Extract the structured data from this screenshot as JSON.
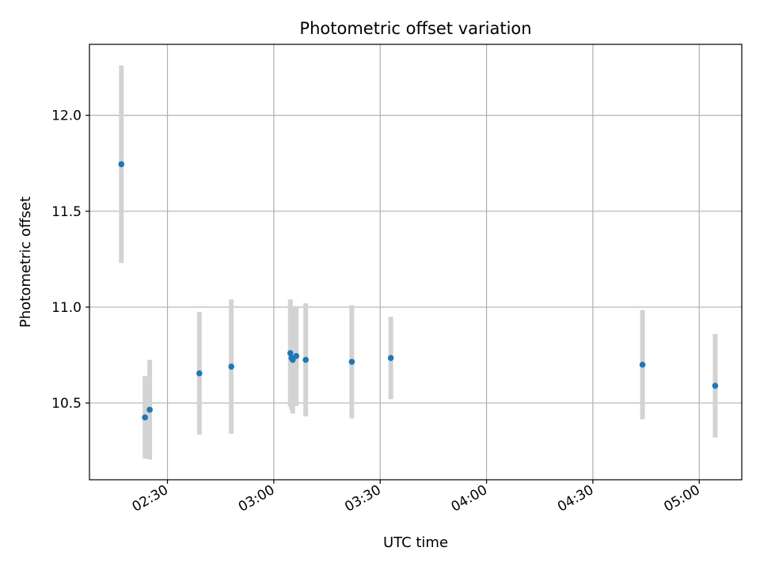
{
  "chart_data": {
    "type": "scatter",
    "title": "Photometric offset variation",
    "xlabel": "UTC time",
    "ylabel": "Photometric offset",
    "x_range": [
      "02:08",
      "05:12"
    ],
    "ylim": [
      10.1,
      12.37
    ],
    "x_ticks": [
      "02:30",
      "03:00",
      "03:30",
      "04:00",
      "04:30",
      "05:00"
    ],
    "y_ticks": [
      10.5,
      11.0,
      11.5,
      12.0
    ],
    "y_tick_labels": [
      "10.5",
      "11.0",
      "11.5",
      "12.0"
    ],
    "grid": true,
    "colors": {
      "point": "#1f77b4",
      "errorbar": "#d3d3d3"
    },
    "series": [
      {
        "points": [
          {
            "x": "02:17",
            "y": 11.745,
            "err": 0.515
          },
          {
            "x": "02:23:40",
            "y": 10.425,
            "err": 0.215
          },
          {
            "x": "02:25",
            "y": 10.465,
            "err": 0.26
          },
          {
            "x": "02:39",
            "y": 10.655,
            "err": 0.32
          },
          {
            "x": "02:48",
            "y": 10.69,
            "err": 0.35
          },
          {
            "x": "03:04:40",
            "y": 10.76,
            "err": 0.28
          },
          {
            "x": "03:05",
            "y": 10.735,
            "err": 0.27
          },
          {
            "x": "03:05:20",
            "y": 10.725,
            "err": 0.28
          },
          {
            "x": "03:06:20",
            "y": 10.745,
            "err": 0.26
          },
          {
            "x": "03:09",
            "y": 10.725,
            "err": 0.295
          },
          {
            "x": "03:22",
            "y": 10.715,
            "err": 0.295
          },
          {
            "x": "03:33",
            "y": 10.735,
            "err": 0.215
          },
          {
            "x": "04:44",
            "y": 10.7,
            "err": 0.285
          },
          {
            "x": "05:04:30",
            "y": 10.59,
            "err": 0.27
          }
        ]
      }
    ]
  }
}
